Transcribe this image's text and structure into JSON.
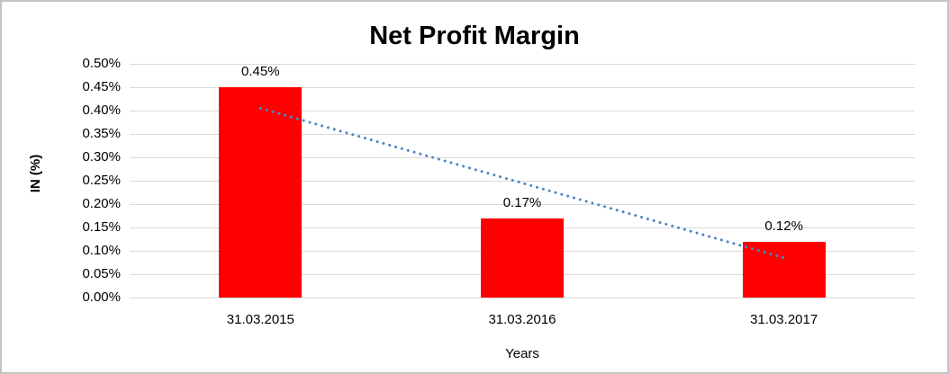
{
  "frame": {
    "background": "#FFFFFF",
    "border_color": "#C3C3C3"
  },
  "chart_data": {
    "type": "bar",
    "title": "Net Profit Margin",
    "xlabel": "Years",
    "ylabel": "IN (%)",
    "categories": [
      "31.03.2015",
      "31.03.2016",
      "31.03.2017"
    ],
    "values": [
      0.45,
      0.17,
      0.12
    ],
    "data_labels": [
      "0.45%",
      "0.17%",
      "0.12%"
    ],
    "y_ticks": [
      "0.50%",
      "0.45%",
      "0.40%",
      "0.35%",
      "0.30%",
      "0.25%",
      "0.20%",
      "0.15%",
      "0.10%",
      "0.05%",
      "0.00%"
    ],
    "ylim": [
      0,
      0.5
    ],
    "grid": true,
    "legend": "none",
    "bar_color": "#FF0000",
    "gridline_color": "#D9D9D9",
    "trendline": {
      "type": "linear",
      "style": "dotted",
      "color": "#4E86C8",
      "start_value": 0.405,
      "end_value": 0.085
    }
  }
}
